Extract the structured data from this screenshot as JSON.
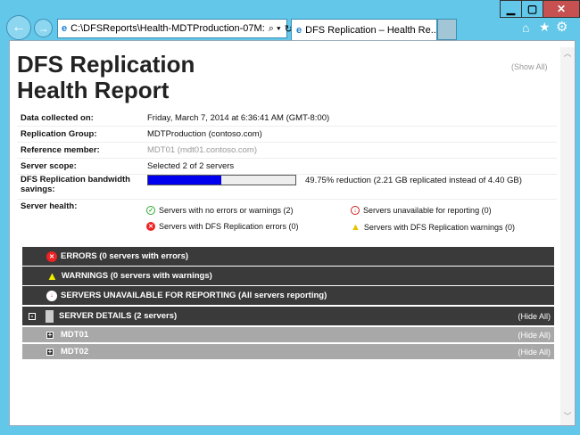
{
  "browser": {
    "address": "C:\\DFSReports\\Health-MDTProduction-07M:",
    "tab_title": "DFS Replication – Health Re...",
    "colors": {
      "frame": "#63c7ea",
      "close": "#c75050"
    }
  },
  "report": {
    "title_line1": "DFS Replication",
    "title_line2": "Health Report",
    "show_all": "(Show All)",
    "rows": [
      {
        "label": "Data collected on:",
        "value": "Friday, March 7, 2014 at 6:36:41 AM (GMT-8:00)"
      },
      {
        "label": "Replication Group:",
        "value": "MDTProduction (contoso.com)"
      },
      {
        "label": "Reference member:",
        "value": "MDT01 (mdt01.contoso.com)"
      },
      {
        "label": "Server scope:",
        "value": "Selected 2 of 2 servers"
      },
      {
        "label": "DFS Replication bandwidth savings:",
        "value": "49.75% reduction (2.21 GB replicated instead of 4.40 GB)"
      },
      {
        "label": "Server health:"
      }
    ],
    "bandwidth_savings_percent": 49.75,
    "health": {
      "ok": "Servers with no errors or warnings (2)",
      "errors": "Servers with DFS Replication errors (0)",
      "unavailable": "Servers unavailable for reporting (0)",
      "warnings": "Servers with DFS Replication warnings (0)"
    },
    "sections": {
      "errors": "ERRORS  (0 servers with errors)",
      "warnings": "WARNINGS  (0 servers with warnings)",
      "unavailable": "SERVERS UNAVAILABLE FOR REPORTING  (All servers reporting)",
      "details": "SERVER DETAILS  (2 servers)",
      "hide_all": "(Hide All)"
    },
    "servers": [
      {
        "name": "MDT01",
        "hide": "(Hide All)"
      },
      {
        "name": "MDT02",
        "hide": "(Hide All)"
      }
    ]
  }
}
